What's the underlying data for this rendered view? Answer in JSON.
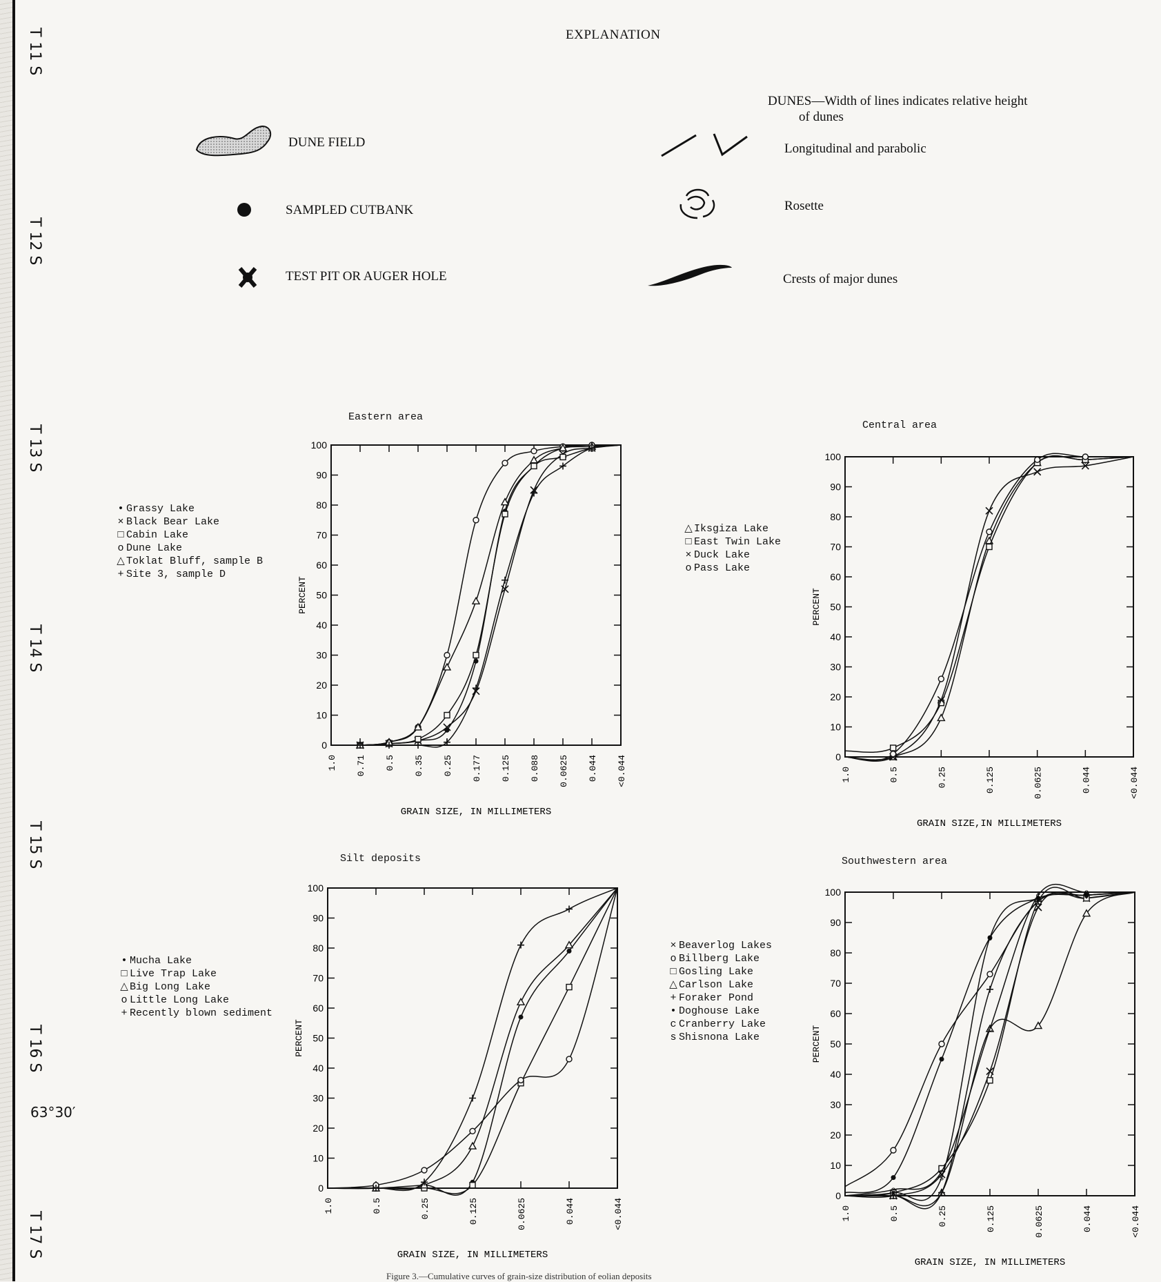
{
  "township_labels": [
    "T 11 S",
    "T 12 S",
    "T 13 S",
    "T 14 S",
    "T 15 S",
    "T 16 S",
    "T 17 S"
  ],
  "latitude_label": "63°30′",
  "explanation": {
    "title": "EXPLANATION",
    "dune_field": "DUNE FIELD",
    "sampled_cutbank": "SAMPLED CUTBANK",
    "test_pit": "TEST PIT OR AUGER HOLE",
    "dunes_heading_1": "DUNES—Width of lines indicates relative height",
    "dunes_heading_2": "of dunes",
    "longitudinal": "Longitudinal and parabolic",
    "rosette": "Rosette",
    "crests": "Crests of major dunes"
  },
  "footer": "Figure 3.—Cumulative curves of grain-size distribution of eolian deposits",
  "legend_symbols": {
    "dot": "•",
    "x": "×",
    "square": "□",
    "circle": "o",
    "triangle": "△",
    "plus": "+",
    "c": "c",
    "s": "s"
  },
  "chart_data": [
    {
      "type": "line",
      "title": "Eastern area",
      "xlabel": "GRAIN SIZE, IN MILLIMETERS",
      "ylabel": "PERCENT",
      "ylim": [
        0,
        100
      ],
      "x_ticks": [
        "1.0",
        "0.71",
        "0.5",
        "0.35",
        "0.25",
        "0.177",
        "0.125",
        "0.088",
        "0.0625",
        "0.044",
        "<0.044"
      ],
      "y_ticks": [
        "0",
        "10",
        "20",
        "30",
        "40",
        "50",
        "60",
        "70",
        "80",
        "90",
        "100"
      ],
      "legend_position": "left",
      "series": [
        {
          "name": "Grassy Lake",
          "symbol": "dot",
          "x": [
            "1.0",
            "0.71",
            "0.5",
            "0.35",
            "0.25",
            "0.177",
            "0.125",
            "0.088",
            "0.0625",
            "0.044",
            "<0.044"
          ],
          "y": [
            0,
            0,
            0.5,
            1.5,
            5,
            28,
            78,
            93,
            99,
            99.5,
            100
          ]
        },
        {
          "name": "Black Bear Lake",
          "symbol": "x",
          "x": [
            "1.0",
            "0.71",
            "0.5",
            "0.35",
            "0.25",
            "0.177",
            "0.125",
            "0.088",
            "0.0625",
            "0.044",
            "<0.044"
          ],
          "y": [
            0,
            0,
            0.5,
            1.5,
            6,
            18,
            52,
            85,
            97,
            99,
            100
          ]
        },
        {
          "name": "Cabin Lake",
          "symbol": "square",
          "x": [
            "1.0",
            "0.71",
            "0.5",
            "0.35",
            "0.25",
            "0.177",
            "0.125",
            "0.088",
            "0.0625",
            "0.044",
            "<0.044"
          ],
          "y": [
            0,
            0,
            0.5,
            2,
            10,
            30,
            77,
            93,
            96,
            99,
            100
          ]
        },
        {
          "name": "Dune Lake",
          "symbol": "circle",
          "x": [
            "1.0",
            "0.71",
            "0.5",
            "0.35",
            "0.25",
            "0.177",
            "0.125",
            "0.088",
            "0.0625",
            "0.044",
            "<0.044"
          ],
          "y": [
            0,
            0,
            1,
            6,
            30,
            75,
            94,
            98,
            99.5,
            100,
            100
          ]
        },
        {
          "name": "Toklat Bluff, sample B",
          "symbol": "triangle",
          "x": [
            "1.0",
            "0.71",
            "0.5",
            "0.35",
            "0.25",
            "0.177",
            "0.125",
            "0.088",
            "0.0625",
            "0.044",
            "<0.044"
          ],
          "y": [
            0,
            0,
            1,
            6,
            26,
            48,
            81,
            95,
            99,
            99.5,
            100
          ]
        },
        {
          "name": "Site 3, sample D",
          "symbol": "plus",
          "x": [
            "1.0",
            "0.71",
            "0.5",
            "0.35",
            "0.25",
            "0.177",
            "0.125",
            "0.088",
            "0.0625",
            "0.044",
            "<0.044"
          ],
          "y": [
            0,
            0,
            0,
            0,
            1,
            19,
            55,
            84,
            93,
            99,
            100
          ]
        }
      ]
    },
    {
      "type": "line",
      "title": "Central area",
      "xlabel": "GRAIN SIZE,IN MILLIMETERS",
      "ylabel": "PERCENT",
      "ylim": [
        0,
        100
      ],
      "x_ticks": [
        "1.0",
        "0.5",
        "0.25",
        "0.125",
        "0.0625",
        "0.044",
        "<0.044"
      ],
      "y_ticks": [
        "0",
        "10",
        "20",
        "30",
        "40",
        "50",
        "60",
        "70",
        "80",
        "90",
        "100"
      ],
      "legend_position": "left",
      "series": [
        {
          "name": "Iksgiza Lake",
          "symbol": "triangle",
          "x": [
            "1.0",
            "0.5",
            "0.25",
            "0.125",
            "0.0625",
            "0.044",
            "<0.044"
          ],
          "y": [
            0,
            0,
            13,
            72,
            98,
            99,
            100
          ]
        },
        {
          "name": "East Twin Lake",
          "symbol": "square",
          "x": [
            "1.0",
            "0.5",
            "0.25",
            "0.125",
            "0.0625",
            "0.044",
            "<0.044"
          ],
          "y": [
            2,
            3,
            18,
            70,
            98,
            99,
            100
          ]
        },
        {
          "name": "Duck Lake",
          "symbol": "x",
          "x": [
            "1.0",
            "0.5",
            "0.25",
            "0.125",
            "0.0625",
            "0.044",
            "<0.044"
          ],
          "y": [
            0,
            0,
            19,
            82,
            95,
            97,
            100
          ]
        },
        {
          "name": "Pass Lake",
          "symbol": "circle",
          "x": [
            "1.0",
            "0.5",
            "0.25",
            "0.125",
            "0.0625",
            "0.044",
            "<0.044"
          ],
          "y": [
            0,
            1,
            26,
            75,
            99,
            100,
            100
          ]
        }
      ]
    },
    {
      "type": "line",
      "title": "Silt deposits",
      "xlabel": "GRAIN SIZE, IN MILLIMETERS",
      "ylabel": "PERCENT",
      "ylim": [
        0,
        100
      ],
      "x_ticks": [
        "1.0",
        "0.5",
        "0.25",
        "0.125",
        "0.0625",
        "0.044",
        "<0.044"
      ],
      "y_ticks": [
        "0",
        "10",
        "20",
        "30",
        "40",
        "50",
        "60",
        "70",
        "80",
        "90",
        "100"
      ],
      "legend_position": "left",
      "series": [
        {
          "name": "Mucha Lake",
          "symbol": "dot",
          "x": [
            "1.0",
            "0.5",
            "0.25",
            "0.125",
            "0.0625",
            "0.044",
            "<0.044"
          ],
          "y": [
            0,
            0,
            1,
            2,
            57,
            79,
            100
          ]
        },
        {
          "name": "Live Trap Lake",
          "symbol": "square",
          "x": [
            "1.0",
            "0.5",
            "0.25",
            "0.125",
            "0.0625",
            "0.044",
            "<0.044"
          ],
          "y": [
            0,
            0,
            0,
            1,
            35,
            67,
            100
          ]
        },
        {
          "name": "Big Long Lake",
          "symbol": "triangle",
          "x": [
            "1.0",
            "0.5",
            "0.25",
            "0.125",
            "0.0625",
            "0.044",
            "<0.044"
          ],
          "y": [
            0,
            0,
            1,
            14,
            62,
            81,
            100
          ]
        },
        {
          "name": "Little Long Lake",
          "symbol": "circle",
          "x": [
            "1.0",
            "0.5",
            "0.25",
            "0.125",
            "0.0625",
            "0.044",
            "<0.044"
          ],
          "y": [
            0,
            1,
            6,
            19,
            36,
            43,
            100
          ]
        },
        {
          "name": "Recently blown sediment",
          "symbol": "plus",
          "x": [
            "1.0",
            "0.5",
            "0.25",
            "0.125",
            "0.0625",
            "0.044",
            "<0.044"
          ],
          "y": [
            0,
            0,
            2,
            30,
            81,
            93,
            100
          ]
        }
      ]
    },
    {
      "type": "line",
      "title": "Southwestern area",
      "xlabel": "GRAIN SIZE, IN MILLIMETERS",
      "ylabel": "PERCENT",
      "ylim": [
        0,
        100
      ],
      "x_ticks": [
        "1.0",
        "0.5",
        "0.25",
        "0.125",
        "0.0625",
        "0.044",
        "<0.044"
      ],
      "y_ticks": [
        "0",
        "10",
        "20",
        "30",
        "40",
        "50",
        "60",
        "70",
        "80",
        "90",
        "100"
      ],
      "legend_position": "left",
      "series": [
        {
          "name": "Beaverlog Lakes",
          "symbol": "x",
          "x": [
            "1.0",
            "0.5",
            "0.25",
            "0.125",
            "0.0625",
            "0.044",
            "<0.044"
          ],
          "y": [
            0,
            0,
            7,
            41,
            95,
            98,
            100
          ]
        },
        {
          "name": "Billberg Lake",
          "symbol": "circle",
          "x": [
            "1.0",
            "0.5",
            "0.25",
            "0.125",
            "0.0625",
            "0.044",
            "<0.044"
          ],
          "y": [
            3,
            15,
            50,
            73,
            97,
            99,
            100
          ]
        },
        {
          "name": "Gosling Lake",
          "symbol": "square",
          "x": [
            "1.0",
            "0.5",
            "0.25",
            "0.125",
            "0.0625",
            "0.044",
            "<0.044"
          ],
          "y": [
            0,
            1,
            9,
            38,
            97,
            98,
            100
          ]
        },
        {
          "name": "Carlson Lake",
          "symbol": "triangle",
          "x": [
            "1.0",
            "0.5",
            "0.25",
            "0.125",
            "0.0625",
            "0.044",
            "<0.044"
          ],
          "y": [
            0,
            0,
            1,
            55,
            56,
            93,
            100
          ]
        },
        {
          "name": "Foraker Pond",
          "symbol": "plus",
          "x": [
            "1.0",
            "0.5",
            "0.25",
            "0.125",
            "0.0625",
            "0.044",
            "<0.044"
          ],
          "y": [
            0,
            0,
            1,
            68,
            97,
            99,
            100
          ]
        },
        {
          "name": "Doghouse Lake",
          "symbol": "dot",
          "x": [
            "1.0",
            "0.5",
            "0.25",
            "0.125",
            "0.0625",
            "0.044",
            "<0.044"
          ],
          "y": [
            1,
            6,
            45,
            85,
            98,
            99,
            100
          ]
        },
        {
          "name": "Cranberry Lake",
          "symbol": "c",
          "x": [
            "1.0",
            "0.5",
            "0.25",
            "0.125",
            "0.0625",
            "0.044",
            "<0.044"
          ],
          "y": [
            0,
            2,
            8,
            55,
            99,
            100,
            100
          ]
        },
        {
          "name": "Shisnona Lake",
          "symbol": "s",
          "x": [
            "1.0",
            "0.5",
            "0.25",
            "0.125",
            "0.0625",
            "0.044",
            "<0.044"
          ],
          "y": [
            0,
            1,
            6,
            85,
            98,
            99,
            100
          ]
        }
      ]
    }
  ]
}
